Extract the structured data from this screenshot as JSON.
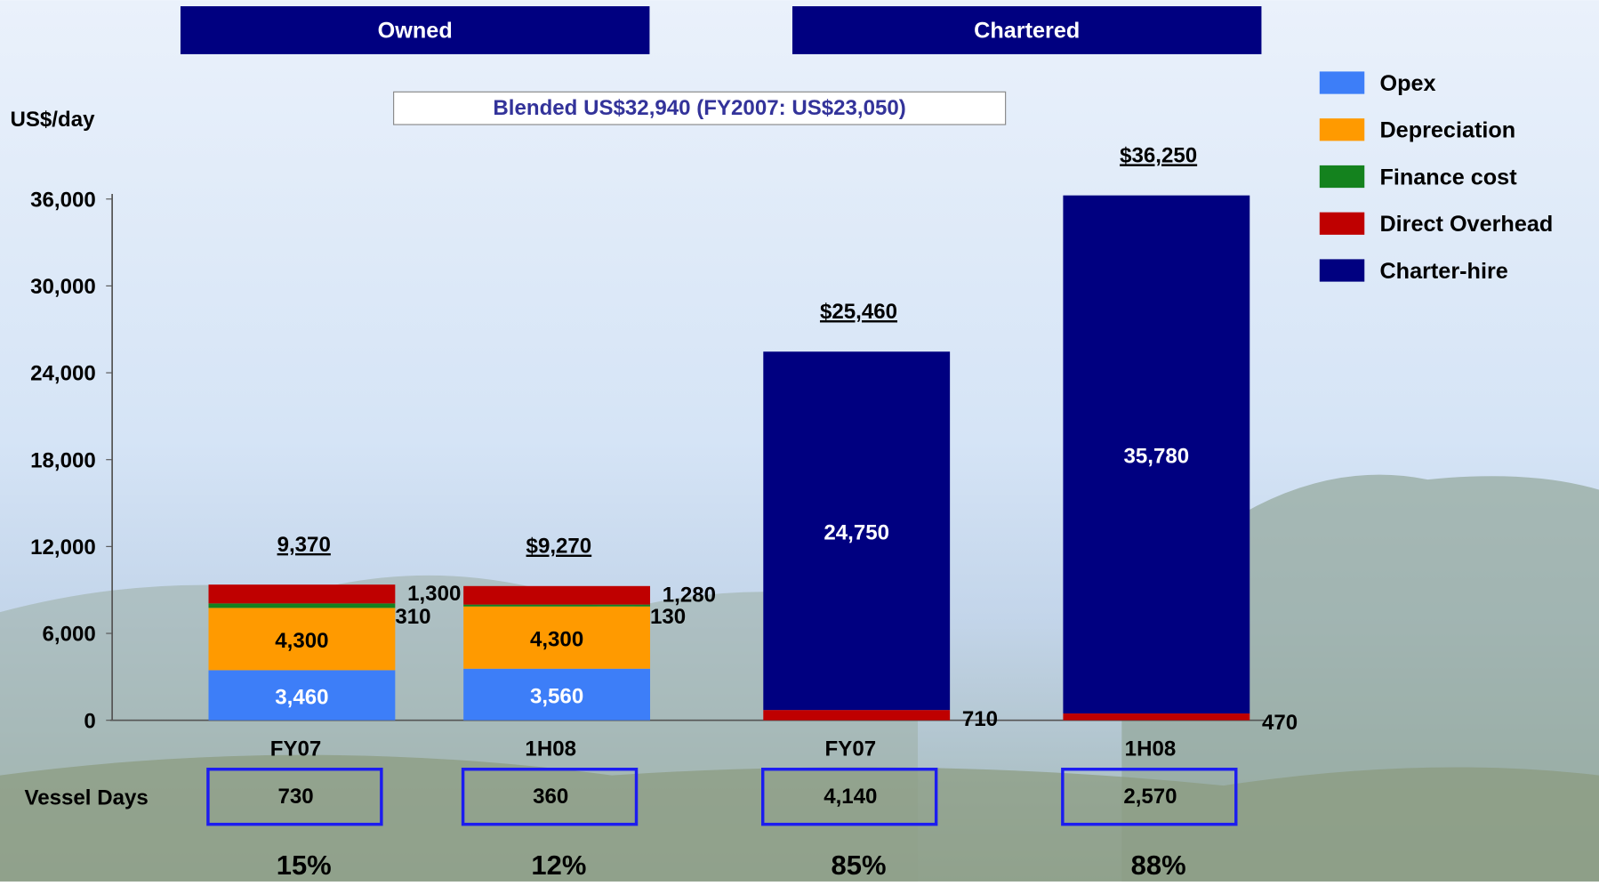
{
  "chart_data": {
    "type": "stacked_bar",
    "groups": [
      "Owned",
      "Chartered"
    ],
    "y_label": "US$/day",
    "annotation": "Blended US$32,940 (FY2007: US$23,050)",
    "categories": [
      "FY07",
      "1H08",
      "FY07",
      "1H08"
    ],
    "series": [
      {
        "name": "Opex",
        "color": "#3d7ef8",
        "values": [
          3460,
          3560,
          null,
          null
        ],
        "value_labels": [
          "3,460",
          "3,560",
          null,
          null
        ]
      },
      {
        "name": "Depreciation",
        "color": "#ff9a00",
        "values": [
          4300,
          4300,
          null,
          null
        ],
        "value_labels": [
          "4,300",
          "4,300",
          null,
          null
        ]
      },
      {
        "name": "Finance cost",
        "color": "#14821e",
        "values": [
          310,
          130,
          null,
          null
        ],
        "value_labels": [
          "310",
          "130",
          null,
          null
        ]
      },
      {
        "name": "Direct Overhead",
        "color": "#bf0000",
        "values": [
          1300,
          1280,
          710,
          470
        ],
        "value_labels": [
          "1,300",
          "1,280",
          "710",
          "470"
        ]
      },
      {
        "name": "Charter-hire",
        "color": "#000080",
        "values": [
          null,
          null,
          24750,
          35780
        ],
        "value_labels": [
          null,
          null,
          "24,750",
          "35,780"
        ]
      }
    ],
    "totals": {
      "values": [
        9370,
        9270,
        25460,
        36250
      ],
      "value_labels": [
        "9,370",
        "$9,270",
        "$25,460",
        "$36,250"
      ]
    },
    "vessel_days": {
      "label": "Vessel Days",
      "values": [
        730,
        360,
        4140,
        2570
      ],
      "value_labels": [
        "730",
        "360",
        "4,140",
        "2,570"
      ]
    },
    "shares": {
      "values": [
        15,
        12,
        85,
        88
      ],
      "value_labels": [
        "15%",
        "12%",
        "85%",
        "88%"
      ]
    },
    "ylim": [
      0,
      36000
    ],
    "yticks": [
      0,
      {
        "value": 6000,
        "label": "6,000"
      },
      {
        "value": 12000,
        "label": "12,000"
      },
      {
        "value": 18000,
        "label": "18,000"
      },
      {
        "value": 24000,
        "label": "24,000"
      },
      {
        "value": 30000,
        "label": "30,000"
      },
      {
        "value": 36000,
        "label": "36,000"
      }
    ],
    "legend": "right"
  }
}
